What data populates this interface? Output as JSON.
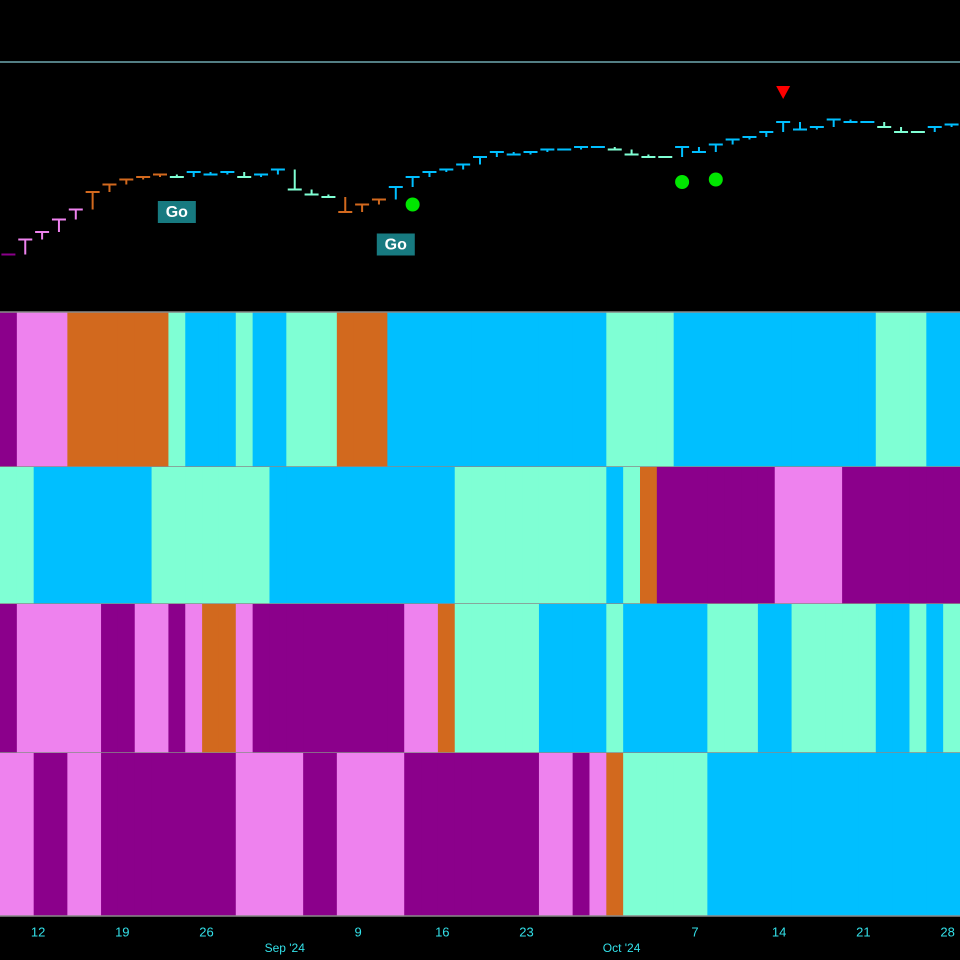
{
  "chart_data": {
    "type": "regime-bars",
    "colors": [
      "#8b008b",
      "#ee82ee",
      "#d2691e",
      "#7fffd4",
      "#00bfff"
    ],
    "ylim": [
      0,
      100
    ],
    "xlim": [
      -0.5,
      56.5
    ],
    "close": [
      23,
      29,
      32,
      37,
      41,
      48,
      51,
      53,
      54,
      55,
      54,
      56,
      55,
      56,
      54,
      55,
      57,
      49,
      47,
      46,
      40,
      43,
      45,
      50,
      54,
      56,
      57,
      59,
      62,
      64,
      63,
      64,
      65,
      65,
      66,
      66,
      65,
      63,
      62,
      62,
      66,
      64,
      67,
      69,
      70,
      72,
      76,
      73,
      74,
      77,
      76,
      76,
      74,
      72,
      72,
      74,
      75
    ],
    "regime": [
      0,
      1,
      1,
      1,
      1,
      2,
      2,
      2,
      2,
      2,
      3,
      4,
      4,
      4,
      3,
      4,
      4,
      3,
      3,
      3,
      2,
      2,
      2,
      4,
      4,
      4,
      4,
      4,
      4,
      4,
      4,
      4,
      4,
      4,
      4,
      4,
      3,
      3,
      3,
      3,
      4,
      4,
      4,
      4,
      4,
      4,
      4,
      4,
      4,
      4,
      4,
      4,
      3,
      3,
      3,
      4,
      4
    ],
    "bands": [
      [
        0,
        1,
        1,
        1,
        2,
        2,
        2,
        2,
        2,
        2,
        3,
        4,
        4,
        4,
        3,
        4,
        4,
        3,
        3,
        3,
        2,
        2,
        2,
        4,
        4,
        4,
        4,
        4,
        4,
        4,
        4,
        4,
        4,
        4,
        4,
        4,
        3,
        3,
        3,
        3,
        4,
        4,
        4,
        4,
        4,
        4,
        4,
        4,
        4,
        4,
        4,
        4,
        3,
        3,
        3,
        4,
        4
      ],
      [
        3,
        3,
        4,
        4,
        4,
        4,
        4,
        4,
        4,
        3,
        3,
        3,
        3,
        3,
        3,
        3,
        4,
        4,
        4,
        4,
        4,
        4,
        4,
        4,
        4,
        4,
        4,
        3,
        3,
        3,
        3,
        3,
        3,
        3,
        3,
        3,
        4,
        3,
        2,
        0,
        0,
        0,
        0,
        0,
        0,
        0,
        1,
        1,
        1,
        1,
        0,
        0,
        0,
        0,
        0,
        0,
        0
      ],
      [
        0,
        1,
        1,
        1,
        1,
        1,
        0,
        0,
        1,
        1,
        0,
        1,
        2,
        2,
        1,
        0,
        0,
        0,
        0,
        0,
        0,
        0,
        0,
        0,
        1,
        1,
        2,
        3,
        3,
        3,
        3,
        3,
        4,
        4,
        4,
        4,
        3,
        4,
        4,
        4,
        4,
        4,
        3,
        3,
        3,
        4,
        4,
        3,
        3,
        3,
        3,
        3,
        4,
        4,
        3,
        4,
        3
      ],
      [
        1,
        1,
        0,
        0,
        1,
        1,
        0,
        0,
        0,
        0,
        0,
        0,
        0,
        0,
        1,
        1,
        1,
        1,
        0,
        0,
        1,
        1,
        1,
        1,
        0,
        0,
        0,
        0,
        0,
        0,
        0,
        0,
        1,
        1,
        0,
        1,
        2,
        3,
        3,
        3,
        3,
        3,
        4,
        4,
        4,
        4,
        4,
        4,
        4,
        4,
        4,
        4,
        4,
        4,
        4,
        4,
        4
      ]
    ],
    "xticks": [
      {
        "value": 2,
        "label": "12"
      },
      {
        "value": 7,
        "label": "19"
      },
      {
        "value": 12,
        "label": "26"
      },
      {
        "value": 21,
        "label": "9"
      },
      {
        "value": 26,
        "label": "16"
      },
      {
        "value": 31,
        "label": "23"
      },
      {
        "value": 41,
        "label": "7"
      },
      {
        "value": 46,
        "label": "14"
      },
      {
        "value": 51,
        "label": "21"
      },
      {
        "value": 56,
        "label": "28"
      }
    ],
    "month_ticks": [
      {
        "value": 17,
        "label": "Sep '24"
      },
      {
        "value": 37,
        "label": "Oct '24"
      }
    ],
    "annotations": [
      {
        "text": "Go",
        "x": 10,
        "y": 40
      },
      {
        "text": "Go",
        "x": 23,
        "y": 27
      }
    ],
    "buy_signals": [
      {
        "x": 24,
        "y": 43
      },
      {
        "x": 40,
        "y": 52
      },
      {
        "x": 42,
        "y": 53
      }
    ],
    "sell_signals": [
      {
        "x": 46,
        "y": 88
      }
    ]
  }
}
